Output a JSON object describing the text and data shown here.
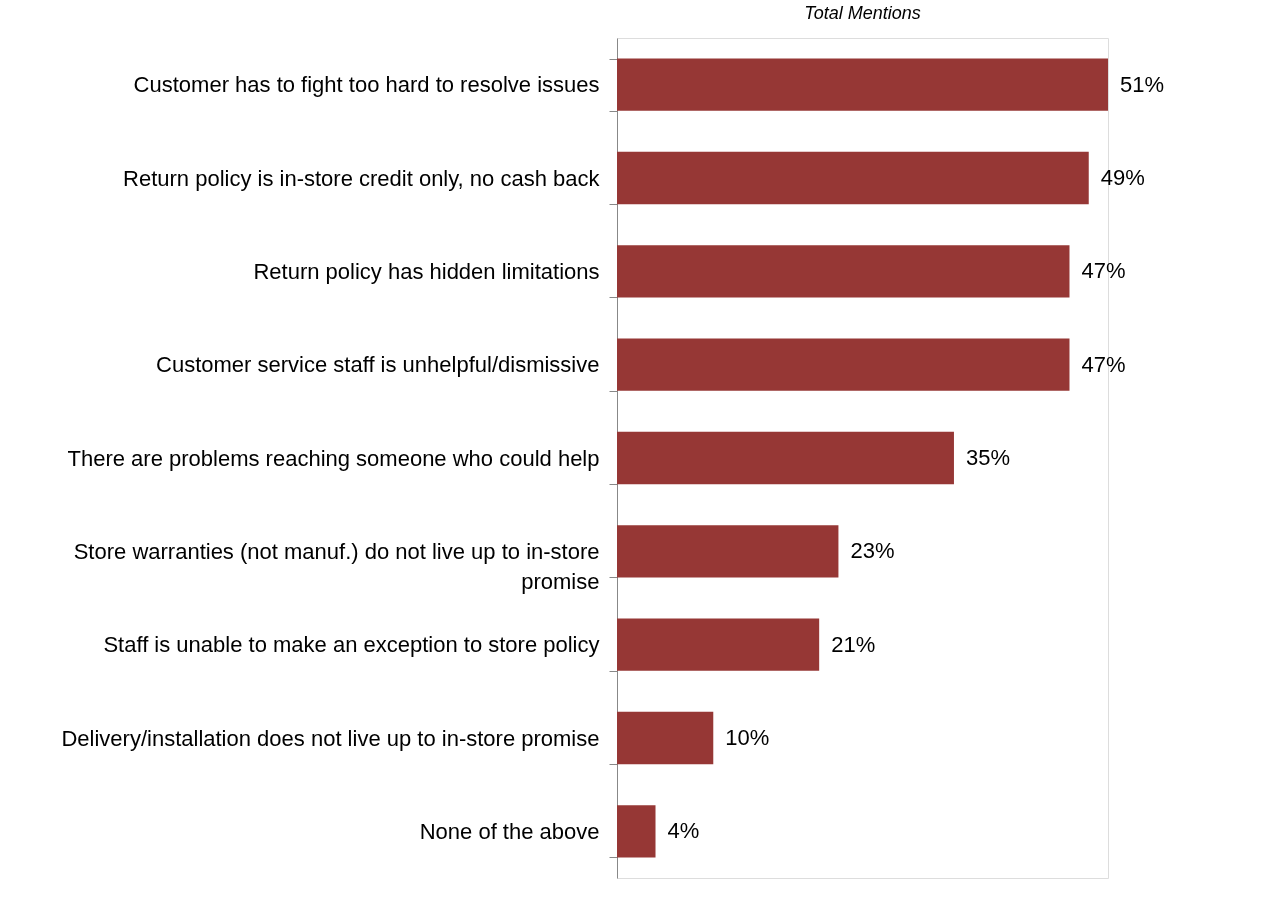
{
  "chart_data": {
    "type": "bar",
    "orientation": "horizontal",
    "title": "Total Mentions",
    "categories": [
      "Customer has to fight too hard to resolve issues",
      "Return policy is in-store credit only, no cash back",
      "Return policy has hidden limitations",
      "Customer service staff is unhelpful/dismissive",
      "There are problems reaching someone who could help",
      "Store warranties (not manuf.) do not live up to in-store\npromise",
      "Staff is unable to make an exception to store policy",
      "Delivery/installation does not live up to in-store promise",
      "None of the above"
    ],
    "values": [
      51,
      49,
      47,
      47,
      35,
      23,
      21,
      10,
      4
    ],
    "value_labels": [
      "51%",
      "49%",
      "47%",
      "47%",
      "35%",
      "23%",
      "21%",
      "10%",
      "4%"
    ],
    "color": "#963735"
  }
}
